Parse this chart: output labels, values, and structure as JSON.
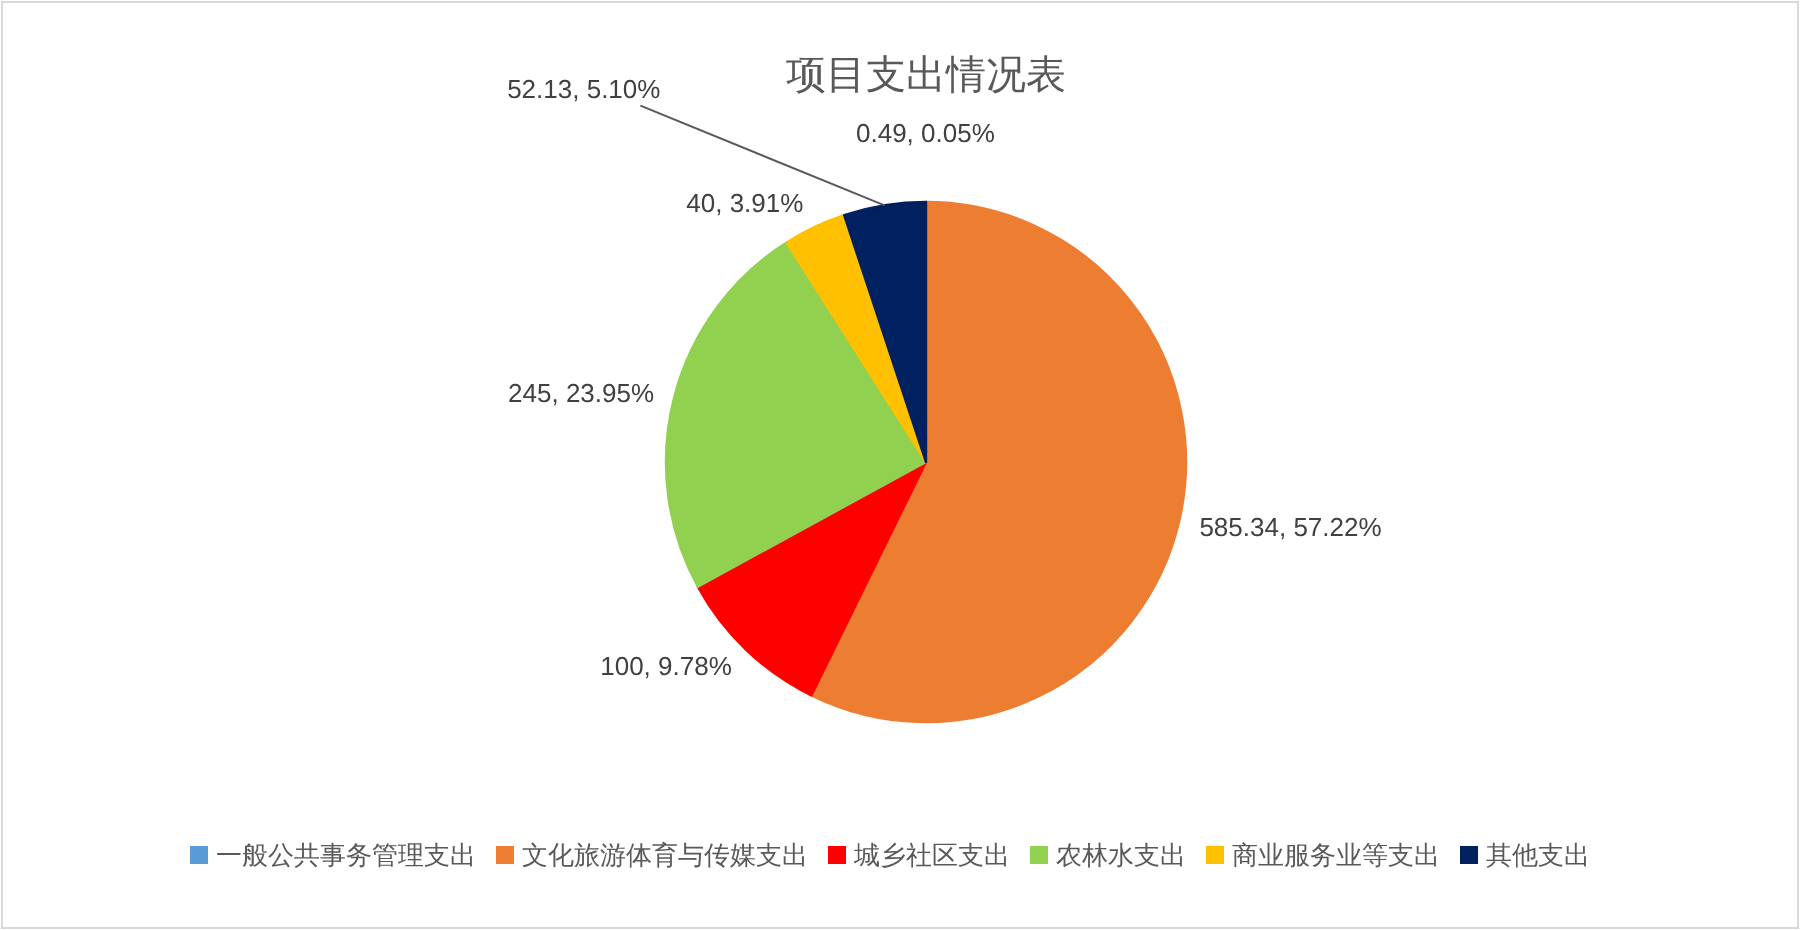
{
  "chart_data": {
    "type": "pie",
    "title": "项目支出情况表",
    "categories": [
      "一般公共事务管理支出",
      "文化旅游体育与传媒支出",
      "城乡社区支出",
      "农林水支出",
      "商业服务业等支出",
      "其他支出"
    ],
    "values": [
      0.49,
      585.34,
      100,
      245,
      40,
      52.13
    ],
    "value_labels": [
      "0.49, 0.05%",
      "585.34, 57.22%",
      "100, 9.78%",
      "245, 23.95%",
      "40, 3.91%",
      "52.13, 5.10%"
    ],
    "colors": [
      "#5b9bd5",
      "#ed7d31",
      "#ff0000",
      "#92d050",
      "#ffc000",
      "#002060"
    ],
    "legend": "bottom"
  }
}
